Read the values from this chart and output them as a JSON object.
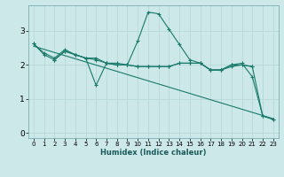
{
  "title": "",
  "xlabel": "Humidex (Indice chaleur)",
  "bg_color": "#cce8e8",
  "grid_color": "#b8d8d8",
  "line_color": "#1a7a6a",
  "xlim": [
    -0.5,
    23.5
  ],
  "ylim": [
    -0.15,
    3.75
  ],
  "xticks": [
    0,
    1,
    2,
    3,
    4,
    5,
    6,
    7,
    8,
    9,
    10,
    11,
    12,
    13,
    14,
    15,
    16,
    17,
    18,
    19,
    20,
    21,
    22,
    23
  ],
  "yticks": [
    0,
    1,
    2,
    3
  ],
  "line1": {
    "x": [
      0,
      1,
      2,
      3,
      4,
      5,
      6,
      7,
      8,
      9,
      10,
      11,
      12,
      13,
      14,
      15,
      16,
      17,
      18,
      19,
      20,
      21,
      22,
      23
    ],
    "y": [
      2.62,
      2.35,
      2.2,
      2.45,
      2.3,
      2.2,
      2.2,
      2.05,
      2.05,
      2.0,
      2.7,
      3.55,
      3.5,
      3.05,
      2.6,
      2.15,
      2.05,
      1.85,
      1.85,
      2.0,
      2.05,
      1.65,
      0.5,
      0.4
    ]
  },
  "line2": {
    "x": [
      0,
      1,
      2,
      3,
      4,
      5,
      6,
      7,
      8,
      9,
      10,
      11,
      12,
      13,
      14,
      15,
      16,
      17,
      18,
      19,
      20,
      21,
      22,
      23
    ],
    "y": [
      2.62,
      2.3,
      2.15,
      2.4,
      2.3,
      2.2,
      1.4,
      2.05,
      2.0,
      2.0,
      1.95,
      1.95,
      1.95,
      1.95,
      2.05,
      2.05,
      2.05,
      1.85,
      1.85,
      1.95,
      2.0,
      1.95,
      0.5,
      0.4
    ]
  },
  "line3": {
    "x": [
      2,
      3,
      4,
      5,
      6,
      7,
      8,
      9,
      10,
      11,
      12,
      13,
      14,
      15,
      16,
      17,
      18,
      19,
      20,
      21
    ],
    "y": [
      2.15,
      2.4,
      2.3,
      2.2,
      2.15,
      2.05,
      2.0,
      2.0,
      1.95,
      1.95,
      1.95,
      1.95,
      2.05,
      2.05,
      2.05,
      1.85,
      1.85,
      2.0,
      2.0,
      1.95
    ]
  },
  "line_diag": {
    "x": [
      0,
      23
    ],
    "y": [
      2.55,
      0.42
    ]
  }
}
